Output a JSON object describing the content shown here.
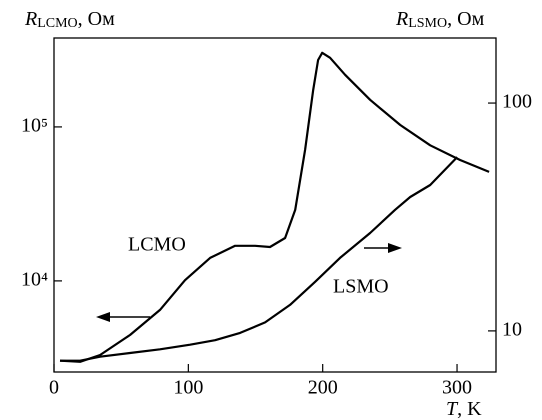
{
  "chart_data": {
    "type": "line",
    "x_label": {
      "symbol": "T",
      "unit": ", K"
    },
    "y_label": {
      "symbol": "R",
      "subscript": "LCMO",
      "unit": ", Ом"
    },
    "y2_label": {
      "symbol": "R",
      "subscript": "LSMO",
      "unit": ", Ом"
    },
    "log_y": true,
    "log_y2": true,
    "xlim": [
      0,
      329
    ],
    "xticks": [
      0,
      100,
      200,
      300
    ],
    "ylim": [
      2560,
      378000
    ],
    "yticks": [
      {
        "value": 10000,
        "label": "10⁴"
      },
      {
        "value": 100000,
        "label": "10⁵"
      }
    ],
    "y2lim": [
      6.6,
      193
    ],
    "y2ticks": [
      10,
      100
    ],
    "series": [
      {
        "name": "LCMO",
        "color": "#000000",
        "x": [
          4.5,
          19.4,
          34.3,
          56.6,
          78.9,
          97.5,
          116.2,
          134.8,
          149.7,
          160.8,
          172,
          179.5,
          186.9,
          192.9,
          196.6,
          199.6,
          205.5,
          216.7,
          235.3,
          257.6,
          280,
          302.3,
          323.9
        ],
        "values": [
          3030,
          2980,
          3300,
          4450,
          6480,
          10100,
          14100,
          16900,
          16900,
          16600,
          19000,
          28900,
          71000,
          174000,
          272000,
          303000,
          281000,
          218000,
          150000,
          103000,
          76000,
          61000,
          51000
        ]
      },
      {
        "name": "LSMO",
        "color": "#000000",
        "axis": "y2",
        "x": [
          4.5,
          19.4,
          34.3,
          56.6,
          78.9,
          101.3,
          119.9,
          138.5,
          157.1,
          175.7,
          194.3,
          212.9,
          235.3,
          253.9,
          265.1,
          280,
          300.1
        ],
        "values": [
          7.4,
          7.4,
          7.7,
          8.0,
          8.3,
          8.7,
          9.1,
          9.8,
          10.9,
          13.0,
          16.4,
          20.9,
          26.9,
          34.0,
          38.7,
          43.7,
          57.9
        ]
      }
    ]
  }
}
